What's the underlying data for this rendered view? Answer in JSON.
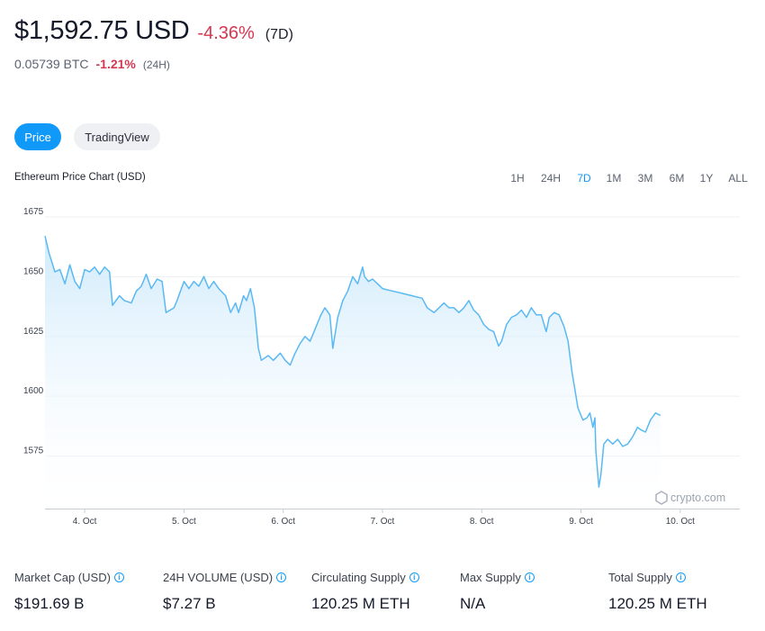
{
  "header": {
    "price": "$1,592.75 USD",
    "change": "-4.36%",
    "period": "(7D)",
    "btc_value": "0.05739 BTC",
    "btc_change": "-1.21%",
    "btc_period": "(24H)"
  },
  "tabs": [
    {
      "label": "Price",
      "active": true
    },
    {
      "label": "TradingView",
      "active": false
    }
  ],
  "time_ranges": [
    {
      "label": "1H"
    },
    {
      "label": "24H"
    },
    {
      "label": "7D",
      "active": true
    },
    {
      "label": "1M"
    },
    {
      "label": "3M"
    },
    {
      "label": "6M"
    },
    {
      "label": "1Y"
    },
    {
      "label": "ALL"
    }
  ],
  "watermark": "crypto.com",
  "colors": {
    "accent": "#1199fa",
    "negative": "#d4374f",
    "line": "#5ab9f3"
  },
  "chart_data": {
    "type": "area",
    "title": "Ethereum Price Chart (USD)",
    "xlabel": "",
    "ylabel": "",
    "x_ticks": [
      "4. Oct",
      "5. Oct",
      "6. Oct",
      "7. Oct",
      "8. Oct",
      "9. Oct",
      "10. Oct"
    ],
    "y_ticks": [
      1575,
      1600,
      1625,
      1650,
      1675
    ],
    "xlim": [
      3.6,
      10.6
    ],
    "ylim": [
      1553,
      1681
    ],
    "grid": true,
    "series": [
      {
        "values": [
          [
            3.6,
            1667
          ],
          [
            3.64,
            1660
          ],
          [
            3.7,
            1652
          ],
          [
            3.75,
            1653
          ],
          [
            3.8,
            1647
          ],
          [
            3.85,
            1655
          ],
          [
            3.9,
            1648
          ],
          [
            3.95,
            1645
          ],
          [
            4.0,
            1653
          ],
          [
            4.05,
            1652
          ],
          [
            4.1,
            1654
          ],
          [
            4.15,
            1651
          ],
          [
            4.2,
            1654
          ],
          [
            4.25,
            1652
          ],
          [
            4.28,
            1638
          ],
          [
            4.35,
            1642
          ],
          [
            4.4,
            1640
          ],
          [
            4.47,
            1639
          ],
          [
            4.52,
            1644
          ],
          [
            4.57,
            1646
          ],
          [
            4.62,
            1651
          ],
          [
            4.67,
            1645
          ],
          [
            4.73,
            1649
          ],
          [
            4.78,
            1648
          ],
          [
            4.82,
            1635
          ],
          [
            4.9,
            1637
          ],
          [
            4.93,
            1640
          ],
          [
            5.0,
            1648
          ],
          [
            5.05,
            1645
          ],
          [
            5.1,
            1648
          ],
          [
            5.15,
            1646
          ],
          [
            5.2,
            1650
          ],
          [
            5.25,
            1645
          ],
          [
            5.3,
            1648
          ],
          [
            5.35,
            1645
          ],
          [
            5.42,
            1642
          ],
          [
            5.47,
            1635
          ],
          [
            5.52,
            1639
          ],
          [
            5.55,
            1635
          ],
          [
            5.6,
            1642
          ],
          [
            5.63,
            1640
          ],
          [
            5.67,
            1645
          ],
          [
            5.71,
            1637
          ],
          [
            5.75,
            1620
          ],
          [
            5.78,
            1615
          ],
          [
            5.85,
            1617
          ],
          [
            5.9,
            1615
          ],
          [
            5.97,
            1618
          ],
          [
            6.02,
            1615
          ],
          [
            6.07,
            1613
          ],
          [
            6.12,
            1618
          ],
          [
            6.17,
            1622
          ],
          [
            6.22,
            1625
          ],
          [
            6.27,
            1623
          ],
          [
            6.32,
            1628
          ],
          [
            6.38,
            1634
          ],
          [
            6.42,
            1637
          ],
          [
            6.47,
            1634
          ],
          [
            6.5,
            1620
          ],
          [
            6.55,
            1633
          ],
          [
            6.6,
            1640
          ],
          [
            6.65,
            1644
          ],
          [
            6.7,
            1650
          ],
          [
            6.75,
            1647
          ],
          [
            6.8,
            1654
          ],
          [
            6.82,
            1650
          ],
          [
            6.86,
            1648
          ],
          [
            6.9,
            1649
          ],
          [
            6.95,
            1647
          ],
          [
            7.0,
            1645
          ],
          [
            7.1,
            1644
          ],
          [
            7.2,
            1643
          ],
          [
            7.3,
            1642
          ],
          [
            7.4,
            1641
          ],
          [
            7.45,
            1637
          ],
          [
            7.52,
            1635
          ],
          [
            7.57,
            1637
          ],
          [
            7.62,
            1639
          ],
          [
            7.67,
            1637
          ],
          [
            7.72,
            1637
          ],
          [
            7.77,
            1635
          ],
          [
            7.82,
            1637
          ],
          [
            7.87,
            1640
          ],
          [
            7.92,
            1636
          ],
          [
            7.97,
            1634
          ],
          [
            8.02,
            1630
          ],
          [
            8.07,
            1628
          ],
          [
            8.12,
            1627
          ],
          [
            8.17,
            1621
          ],
          [
            8.2,
            1623
          ],
          [
            8.25,
            1630
          ],
          [
            8.3,
            1633
          ],
          [
            8.35,
            1634
          ],
          [
            8.4,
            1636
          ],
          [
            8.45,
            1633
          ],
          [
            8.5,
            1637
          ],
          [
            8.55,
            1634
          ],
          [
            8.6,
            1634
          ],
          [
            8.65,
            1627
          ],
          [
            8.68,
            1633
          ],
          [
            8.73,
            1635
          ],
          [
            8.78,
            1634
          ],
          [
            8.83,
            1629
          ],
          [
            8.87,
            1623
          ],
          [
            8.91,
            1610
          ],
          [
            8.93,
            1605
          ],
          [
            8.97,
            1595
          ],
          [
            9.02,
            1590
          ],
          [
            9.06,
            1591
          ],
          [
            9.09,
            1593
          ],
          [
            9.12,
            1587
          ],
          [
            9.14,
            1591
          ],
          [
            9.15,
            1577
          ],
          [
            9.18,
            1562
          ],
          [
            9.2,
            1567
          ],
          [
            9.23,
            1580
          ],
          [
            9.27,
            1582
          ],
          [
            9.32,
            1580
          ],
          [
            9.37,
            1582
          ],
          [
            9.42,
            1579
          ],
          [
            9.47,
            1580
          ],
          [
            9.52,
            1583
          ],
          [
            9.57,
            1587
          ],
          [
            9.6,
            1586
          ],
          [
            9.65,
            1585
          ],
          [
            9.7,
            1590
          ],
          [
            9.75,
            1593
          ],
          [
            9.8,
            1592
          ]
        ]
      }
    ]
  },
  "stats": [
    {
      "label": "Market Cap (USD)",
      "value": "$191.69 B"
    },
    {
      "label": "24H VOLUME (USD)",
      "value": "$7.27 B"
    },
    {
      "label": "Circulating Supply",
      "value": "120.25 M ETH"
    },
    {
      "label": "Max Supply",
      "value": "N/A"
    },
    {
      "label": "Total Supply",
      "value": "120.25 M ETH"
    }
  ]
}
